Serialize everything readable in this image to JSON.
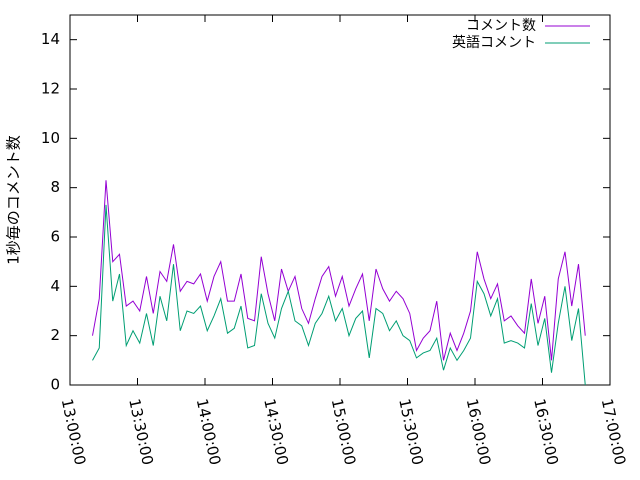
{
  "chart_data": {
    "type": "line",
    "ylabel": "1秒毎のコメント数",
    "x": [
      "13:10:00",
      "13:13:00",
      "13:16:00",
      "13:19:00",
      "13:22:00",
      "13:25:00",
      "13:28:00",
      "13:31:00",
      "13:34:00",
      "13:37:00",
      "13:40:00",
      "13:43:00",
      "13:46:00",
      "13:49:00",
      "13:52:00",
      "13:55:00",
      "13:58:00",
      "14:01:00",
      "14:04:00",
      "14:07:00",
      "14:10:00",
      "14:13:00",
      "14:16:00",
      "14:19:00",
      "14:22:00",
      "14:25:00",
      "14:28:00",
      "14:31:00",
      "14:34:00",
      "14:37:00",
      "14:40:00",
      "14:43:00",
      "14:46:00",
      "14:49:00",
      "14:52:00",
      "14:55:00",
      "14:58:00",
      "15:01:00",
      "15:04:00",
      "15:07:00",
      "15:10:00",
      "15:13:00",
      "15:16:00",
      "15:19:00",
      "15:22:00",
      "15:25:00",
      "15:28:00",
      "15:31:00",
      "15:34:00",
      "15:37:00",
      "15:40:00",
      "15:43:00",
      "15:46:00",
      "15:49:00",
      "15:52:00",
      "15:55:00",
      "15:58:00",
      "16:01:00",
      "16:04:00",
      "16:07:00",
      "16:10:00",
      "16:13:00",
      "16:16:00",
      "16:19:00",
      "16:22:00",
      "16:25:00",
      "16:28:00",
      "16:31:00",
      "16:34:00",
      "16:37:00",
      "16:40:00",
      "16:43:00",
      "16:46:00",
      "16:49:00"
    ],
    "series": [
      {
        "name": "コメント数",
        "color": "#9400d3",
        "values": [
          2.0,
          3.5,
          8.3,
          5.0,
          5.3,
          3.2,
          3.4,
          3.0,
          4.4,
          2.9,
          4.6,
          4.2,
          5.7,
          3.8,
          4.2,
          4.1,
          4.5,
          3.4,
          4.4,
          5.0,
          3.4,
          3.4,
          4.5,
          2.7,
          2.6,
          5.2,
          3.7,
          2.6,
          4.7,
          3.8,
          4.4,
          3.1,
          2.5,
          3.5,
          4.4,
          4.8,
          3.6,
          4.4,
          3.2,
          3.9,
          4.5,
          2.6,
          4.7,
          3.9,
          3.4,
          3.8,
          3.5,
          2.9,
          1.4,
          1.9,
          2.2,
          3.4,
          1.0,
          2.1,
          1.4,
          2.1,
          3.0,
          5.4,
          4.3,
          3.5,
          4.1,
          2.6,
          2.8,
          2.4,
          2.1,
          4.3,
          2.5,
          3.6,
          1.0,
          4.3,
          5.4,
          3.2,
          4.9,
          2.0
        ]
      },
      {
        "name": "英語コメント",
        "color": "#009e73",
        "values": [
          1.0,
          1.5,
          7.3,
          3.4,
          4.5,
          1.6,
          2.2,
          1.7,
          2.9,
          1.6,
          3.6,
          2.6,
          4.9,
          2.2,
          3.0,
          2.9,
          3.2,
          2.2,
          2.8,
          3.5,
          2.1,
          2.3,
          3.2,
          1.5,
          1.6,
          3.7,
          2.5,
          1.9,
          3.1,
          3.8,
          2.6,
          2.4,
          1.6,
          2.5,
          2.9,
          3.6,
          2.6,
          3.1,
          2.0,
          2.7,
          3.0,
          1.1,
          3.1,
          2.9,
          2.2,
          2.6,
          2.0,
          1.8,
          1.1,
          1.3,
          1.4,
          1.9,
          0.6,
          1.5,
          1.0,
          1.4,
          1.9,
          4.2,
          3.7,
          2.8,
          3.5,
          1.7,
          1.8,
          1.7,
          1.5,
          3.3,
          1.6,
          2.7,
          0.5,
          2.5,
          4.0,
          1.8,
          3.1,
          0
        ]
      }
    ],
    "xlim": [
      "13:00:00",
      "17:00:00"
    ],
    "xticks": [
      "13:00:00",
      "13:30:00",
      "14:00:00",
      "14:30:00",
      "15:00:00",
      "15:30:00",
      "16:00:00",
      "16:30:00",
      "17:00:00"
    ],
    "ylim": [
      0,
      15
    ],
    "yticks": [
      0,
      2,
      4,
      6,
      8,
      10,
      12,
      14
    ],
    "legend": "top-right",
    "grid": false
  }
}
